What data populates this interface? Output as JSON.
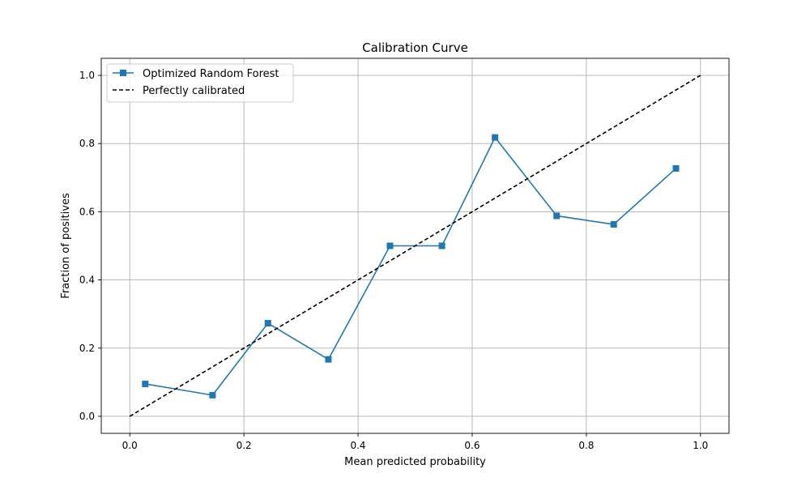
{
  "chart_data": {
    "type": "line",
    "title": "Calibration Curve",
    "xlabel": "Mean predicted probability",
    "ylabel": "Fraction of positives",
    "xlim": [
      -0.05,
      1.05
    ],
    "ylim": [
      -0.05,
      1.05
    ],
    "x_ticks": [
      "0.0",
      "0.2",
      "0.4",
      "0.6",
      "0.8",
      "1.0"
    ],
    "y_ticks": [
      "0.0",
      "0.2",
      "0.4",
      "0.6",
      "0.8",
      "1.0"
    ],
    "grid": true,
    "legend_position": "upper-left",
    "series": [
      {
        "name": "Optimized Random Forest",
        "color": "#1f77b4",
        "marker": "square",
        "line_style": "solid",
        "x": [
          0.027,
          0.145,
          0.242,
          0.348,
          0.456,
          0.547,
          0.64,
          0.748,
          0.848,
          0.957
        ],
        "y": [
          0.095,
          0.062,
          0.273,
          0.167,
          0.5,
          0.5,
          0.818,
          0.588,
          0.563,
          0.727
        ]
      },
      {
        "name": "Perfectly calibrated",
        "color": "#000000",
        "marker": "none",
        "line_style": "dashed",
        "x": [
          0,
          1
        ],
        "y": [
          0,
          1
        ]
      }
    ]
  }
}
